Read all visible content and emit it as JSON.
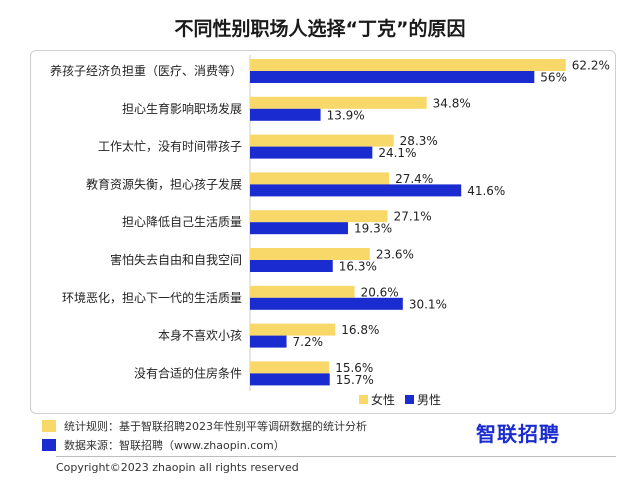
{
  "chart_data": {
    "type": "bar",
    "orientation": "horizontal",
    "title": "不同性别职场人选择“丁克”的原因",
    "categories": [
      "养孩子经济负担重（医疗、消费等）",
      "担心生育影响职场发展",
      "工作太忙，没有时间带孩子",
      "教育资源失衡，担心孩子发展",
      "担心降低自己生活质量",
      "害怕失去自由和自我空间",
      "环境恶化，担心下一代的生活质量",
      "本身不喜欢小孩",
      "没有合适的住房条件"
    ],
    "series": [
      {
        "name": "女性",
        "color": "#f9d86a",
        "values": [
          62.2,
          34.8,
          28.3,
          27.4,
          27.1,
          23.6,
          20.6,
          16.8,
          15.6
        ],
        "labels": [
          "62.2%",
          "34.8%",
          "28.3%",
          "27.4%",
          "27.1%",
          "23.6%",
          "20.6%",
          "16.8%",
          "15.6%"
        ]
      },
      {
        "name": "男性",
        "color": "#1a2ccf",
        "values": [
          56,
          13.9,
          24.1,
          41.6,
          19.3,
          16.3,
          30.1,
          7.2,
          15.7
        ],
        "labels": [
          "56%",
          "13.9%",
          "24.1%",
          "41.6%",
          "19.3%",
          "16.3%",
          "30.1%",
          "7.2%",
          "15.7%"
        ]
      }
    ],
    "legend_placement": "bottom-right",
    "grid": false,
    "xlim": [
      0,
      65
    ]
  },
  "notes": [
    {
      "text": "统计规则：基于智联招聘2023年性别平等调研数据的统计分析",
      "color": "#f9d86a"
    },
    {
      "text": "数据来源：智联招聘（www.zhaopin.com）",
      "color": "#1a2ccf"
    }
  ],
  "brand": "智联招聘",
  "footer": "Copyright©2023 zhaopin all rights reserved"
}
